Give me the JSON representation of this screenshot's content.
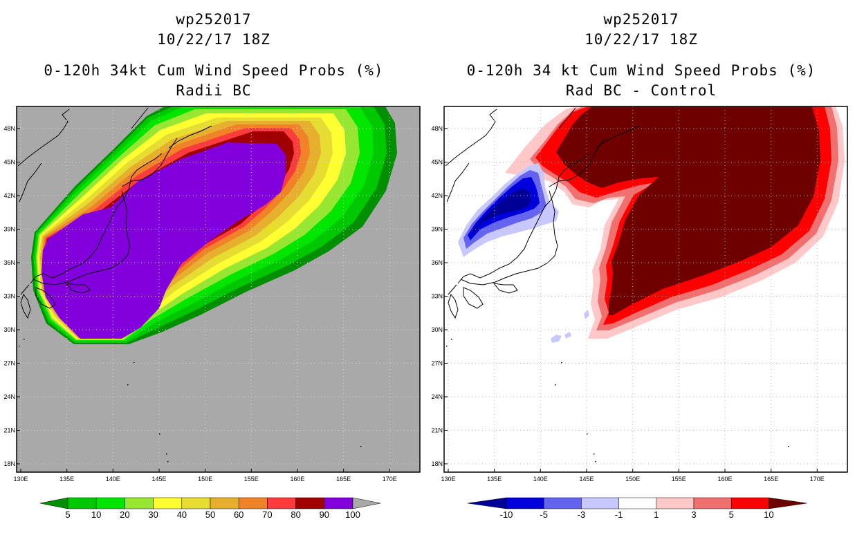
{
  "left_panel": {
    "title_line1": "wp252017",
    "title_line2": "10/22/17 18Z",
    "title_line3": "0-120h 34kt Cum Wind Speed Probs (%)",
    "title_line4": "Radii BC",
    "colorbar": {
      "labels": [
        "5",
        "10",
        "20",
        "30",
        "40",
        "50",
        "60",
        "70",
        "80",
        "90",
        "100"
      ],
      "colors": [
        "#008f00",
        "#00c800",
        "#00e600",
        "#96e632",
        "#ffff32",
        "#e6dc32",
        "#e6af2d",
        "#f08228",
        "#fa3c3c",
        "#a00000",
        "#8200dc",
        "#a9a9a9"
      ]
    }
  },
  "right_panel": {
    "title_line1": "wp252017",
    "title_line2": "10/22/17 18Z",
    "title_line3": "0-120h 34 kt Cum Wind Speed Probs (%)",
    "title_line4": "Rad BC - Control",
    "colorbar": {
      "labels": [
        "-10",
        "-5",
        "-3",
        "-1",
        "1",
        "3",
        "5",
        "10"
      ],
      "colors": [
        "#000096",
        "#0000dc",
        "#6464f0",
        "#c8c8ff",
        "#ffffff",
        "#ffc8c8",
        "#f07070",
        "#ff0000",
        "#6e0000"
      ]
    }
  },
  "map": {
    "lon_labels": [
      "130E",
      "135E",
      "140E",
      "145E",
      "150E",
      "155E",
      "160E",
      "165E",
      "170E"
    ],
    "lat_labels": [
      "48N",
      "45N",
      "42N",
      "39N",
      "36N",
      "33N",
      "30N",
      "27N",
      "24N",
      "21N",
      "18N"
    ],
    "background_left": "#a9a9a9",
    "background_right": "#ffffff"
  }
}
